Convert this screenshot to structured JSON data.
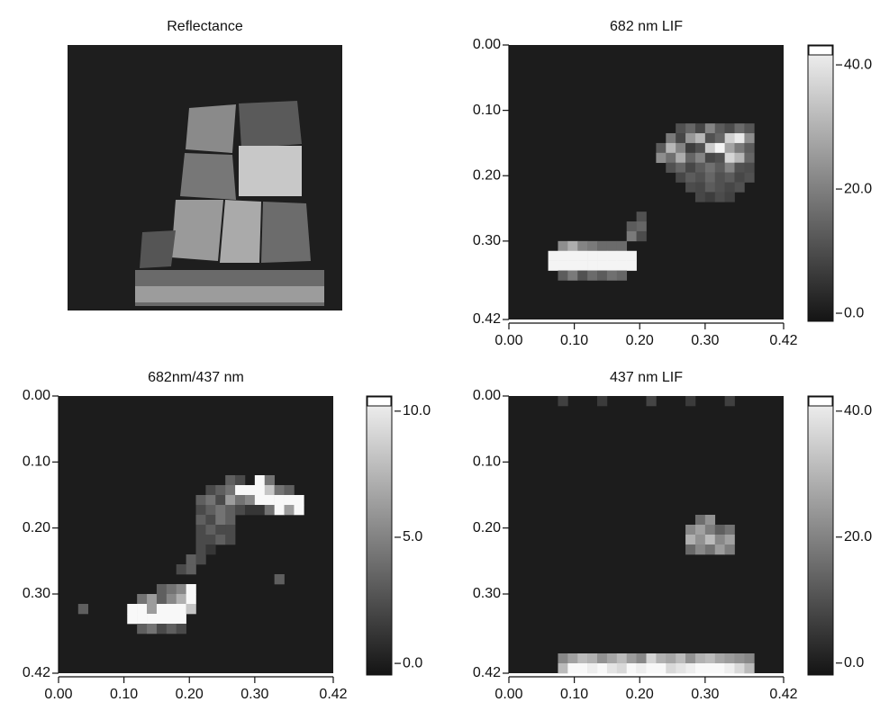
{
  "chart_data": [
    {
      "type": "image",
      "title": "Reflectance"
    },
    {
      "type": "heatmap",
      "title": "682 nm LIF",
      "xlim": [
        0,
        0.42
      ],
      "ylim": [
        0,
        0.42
      ],
      "xticks": [
        {
          "value": 0,
          "label": "0.00"
        },
        {
          "value": 0.1,
          "label": "0.10"
        },
        {
          "value": 0.2,
          "label": "0.20"
        },
        {
          "value": 0.3,
          "label": "0.30"
        },
        0.42
      ],
      "yticks": [
        {
          "value": 0,
          "label": "0.00"
        },
        {
          "value": 0.1,
          "label": "0.10"
        },
        {
          "value": 0.2,
          "label": "0.20"
        },
        {
          "value": 0.3,
          "label": "0.30"
        },
        0.42
      ],
      "clim": [
        -1.3,
        43.2
      ],
      "cticks": [
        {
          "value": 40,
          "label": "40.0"
        },
        {
          "value": 20,
          "label": "20.0"
        },
        {
          "value": 0,
          "label": "0.0"
        }
      ],
      "cells": [
        {
          "y": 0.3,
          "x": [
            0.075,
            0.09,
            0.105,
            0.12,
            0.135,
            0.15,
            0.165
          ],
          "values": [
            22,
            28,
            20,
            18,
            15,
            15,
            15
          ]
        },
        {
          "y": 0.315,
          "x": [
            0.06,
            0.075,
            0.09,
            0.105,
            0.12,
            0.135,
            0.15,
            0.165,
            0.18
          ],
          "values": [
            42,
            42,
            42,
            42,
            42,
            42,
            42,
            42,
            42
          ]
        },
        {
          "y": 0.33,
          "x": [
            0.06,
            0.075,
            0.09,
            0.105,
            0.12,
            0.135,
            0.15,
            0.165,
            0.18
          ],
          "values": [
            42,
            42,
            42,
            42,
            42,
            42,
            42,
            42,
            42
          ]
        },
        {
          "y": 0.345,
          "x": [
            0.075,
            0.09,
            0.105,
            0.12,
            0.135,
            0.15,
            0.165
          ],
          "values": [
            12,
            18,
            10,
            15,
            12,
            16,
            14
          ]
        },
        {
          "y": 0.255,
          "x": [
            0.195
          ],
          "values": [
            10
          ]
        },
        {
          "y": 0.27,
          "x": [
            0.18,
            0.195
          ],
          "values": [
            12,
            14
          ]
        },
        {
          "y": 0.285,
          "x": [
            0.18,
            0.195
          ],
          "values": [
            18,
            9
          ]
        },
        {
          "y": 0.12,
          "x": [
            0.255,
            0.27,
            0.285,
            0.3,
            0.315,
            0.33,
            0.345,
            0.36
          ],
          "values": [
            10,
            14,
            8,
            20,
            12,
            9,
            15,
            11
          ]
        },
        {
          "y": 0.135,
          "x": [
            0.24,
            0.255,
            0.27,
            0.285,
            0.3,
            0.315,
            0.33,
            0.345,
            0.36
          ],
          "values": [
            18,
            8,
            24,
            30,
            10,
            14,
            35,
            40,
            22
          ]
        },
        {
          "y": 0.15,
          "x": [
            0.225,
            0.24,
            0.255,
            0.27,
            0.285,
            0.3,
            0.315,
            0.33,
            0.345,
            0.36
          ],
          "values": [
            12,
            30,
            20,
            6,
            10,
            34,
            42,
            26,
            18,
            12
          ]
        },
        {
          "y": 0.165,
          "x": [
            0.225,
            0.24,
            0.255,
            0.27,
            0.285,
            0.3,
            0.315,
            0.33,
            0.345,
            0.36
          ],
          "values": [
            22,
            16,
            28,
            14,
            20,
            8,
            10,
            36,
            30,
            14
          ]
        },
        {
          "y": 0.18,
          "x": [
            0.24,
            0.255,
            0.27,
            0.285,
            0.3,
            0.315,
            0.33,
            0.345,
            0.36
          ],
          "values": [
            10,
            14,
            8,
            12,
            16,
            12,
            20,
            10,
            9
          ]
        },
        {
          "y": 0.195,
          "x": [
            0.255,
            0.27,
            0.285,
            0.3,
            0.315,
            0.33,
            0.345,
            0.36
          ],
          "values": [
            8,
            12,
            10,
            14,
            10,
            12,
            8,
            10
          ]
        },
        {
          "y": 0.21,
          "x": [
            0.27,
            0.285,
            0.3,
            0.315,
            0.33,
            0.345
          ],
          "values": [
            9,
            8,
            12,
            10,
            8,
            10
          ]
        },
        {
          "y": 0.225,
          "x": [
            0.285,
            0.3,
            0.315,
            0.33
          ],
          "values": [
            8,
            6,
            9,
            7
          ]
        }
      ]
    },
    {
      "type": "heatmap",
      "title": "682nm/437 nm",
      "xlim": [
        0,
        0.42
      ],
      "ylim": [
        0,
        0.42
      ],
      "xticks": [
        {
          "value": 0,
          "label": "0.00"
        },
        {
          "value": 0.1,
          "label": "0.10"
        },
        {
          "value": 0.2,
          "label": "0.20"
        },
        {
          "value": 0.3,
          "label": "0.30"
        },
        0.42
      ],
      "yticks": [
        {
          "value": 0,
          "label": "0.00"
        },
        {
          "value": 0.1,
          "label": "0.10"
        },
        {
          "value": 0.2,
          "label": "0.20"
        },
        {
          "value": 0.3,
          "label": "0.30"
        },
        0.42
      ],
      "clim": [
        -0.46,
        10.6
      ],
      "cticks": [
        {
          "value": 10,
          "label": "10.0"
        },
        {
          "value": 5,
          "label": "5.0"
        },
        {
          "value": 0,
          "label": "0.0"
        }
      ],
      "cells": [
        {
          "y": 0.285,
          "x": [
            0.15,
            0.165,
            0.18,
            0.195
          ],
          "values": [
            3,
            4,
            5,
            10.5
          ]
        },
        {
          "y": 0.3,
          "x": [
            0.12,
            0.135,
            0.15,
            0.165,
            0.18,
            0.195
          ],
          "values": [
            4,
            6,
            3,
            5,
            7,
            10.5
          ]
        },
        {
          "y": 0.315,
          "x": [
            0.105,
            0.12,
            0.135,
            0.15,
            0.165,
            0.18,
            0.195
          ],
          "values": [
            10.5,
            10.5,
            6,
            10.5,
            10.5,
            10.5,
            8
          ]
        },
        {
          "y": 0.33,
          "x": [
            0.105,
            0.12,
            0.135,
            0.15,
            0.165,
            0.18
          ],
          "values": [
            10.5,
            10.5,
            10.5,
            10.5,
            10.5,
            10.5
          ]
        },
        {
          "y": 0.345,
          "x": [
            0.12,
            0.135,
            0.15,
            0.165,
            0.18
          ],
          "values": [
            3,
            4,
            2,
            3,
            2
          ]
        },
        {
          "y": 0.315,
          "x": [
            0.03
          ],
          "values": [
            3
          ]
        },
        {
          "y": 0.255,
          "x": [
            0.18,
            0.195
          ],
          "values": [
            2,
            3
          ]
        },
        {
          "y": 0.24,
          "x": [
            0.195,
            0.21
          ],
          "values": [
            3,
            2
          ]
        },
        {
          "y": 0.27,
          "x": [
            0.33
          ],
          "values": [
            3
          ]
        },
        {
          "y": 0.12,
          "x": [
            0.255,
            0.27,
            0.3,
            0.315
          ],
          "values": [
            3,
            2,
            10.5,
            4
          ]
        },
        {
          "y": 0.135,
          "x": [
            0.225,
            0.24,
            0.255,
            0.27,
            0.285,
            0.3,
            0.315,
            0.33,
            0.345
          ],
          "values": [
            2,
            3,
            4,
            10.5,
            10.5,
            10.5,
            8,
            4,
            3
          ]
        },
        {
          "y": 0.15,
          "x": [
            0.21,
            0.225,
            0.24,
            0.255,
            0.27,
            0.285,
            0.3,
            0.315,
            0.33,
            0.345,
            0.36
          ],
          "values": [
            3,
            4,
            2,
            6,
            4,
            5,
            10.5,
            10.5,
            10.5,
            10.5,
            10.5
          ]
        },
        {
          "y": 0.165,
          "x": [
            0.21,
            0.225,
            0.24,
            0.255,
            0.27,
            0.285,
            0.3,
            0.315,
            0.33,
            0.345,
            0.36
          ],
          "values": [
            2,
            3,
            4,
            3,
            2,
            1,
            1,
            4,
            10.5,
            6,
            10.5
          ]
        },
        {
          "y": 0.18,
          "x": [
            0.21,
            0.225,
            0.24,
            0.255
          ],
          "values": [
            3,
            2,
            4,
            3
          ]
        },
        {
          "y": 0.195,
          "x": [
            0.21,
            0.225,
            0.24,
            0.255
          ],
          "values": [
            2,
            3,
            2,
            2
          ]
        },
        {
          "y": 0.21,
          "x": [
            0.21,
            0.225,
            0.24,
            0.255
          ],
          "values": [
            2,
            2,
            3,
            2
          ]
        },
        {
          "y": 0.225,
          "x": [
            0.21,
            0.225
          ],
          "values": [
            2,
            1
          ]
        }
      ]
    },
    {
      "type": "heatmap",
      "title": "437 nm LIF",
      "xlim": [
        0,
        0.42
      ],
      "ylim": [
        0,
        0.42
      ],
      "xticks": [
        {
          "value": 0,
          "label": "0.00"
        },
        {
          "value": 0.1,
          "label": "0.10"
        },
        {
          "value": 0.2,
          "label": "0.20"
        },
        {
          "value": 0.3,
          "label": "0.30"
        },
        0.42
      ],
      "yticks": [
        {
          "value": 0,
          "label": "0.00"
        },
        {
          "value": 0.1,
          "label": "0.10"
        },
        {
          "value": 0.2,
          "label": "0.20"
        },
        {
          "value": 0.3,
          "label": "0.30"
        },
        0.42
      ],
      "clim": [
        -1.9,
        42.4
      ],
      "cticks": [
        {
          "value": 40,
          "label": "40.0"
        },
        {
          "value": 20,
          "label": "20.0"
        },
        {
          "value": 0,
          "label": "0.0"
        }
      ],
      "cells": [
        {
          "y": 0,
          "x": [
            0.075,
            0.135,
            0.21,
            0.27,
            0.33
          ],
          "values": [
            6,
            5,
            7,
            5,
            6
          ]
        },
        {
          "y": 0.18,
          "x": [
            0.285,
            0.3
          ],
          "values": [
            15,
            22
          ]
        },
        {
          "y": 0.195,
          "x": [
            0.27,
            0.285,
            0.3,
            0.315,
            0.33
          ],
          "values": [
            20,
            25,
            18,
            12,
            16
          ]
        },
        {
          "y": 0.21,
          "x": [
            0.27,
            0.285,
            0.3,
            0.315,
            0.33
          ],
          "values": [
            28,
            22,
            30,
            20,
            25
          ]
        },
        {
          "y": 0.225,
          "x": [
            0.27,
            0.285,
            0.3,
            0.315,
            0.33
          ],
          "values": [
            14,
            20,
            16,
            24,
            18
          ]
        },
        {
          "y": 0.39,
          "x": [
            0.075,
            0.09,
            0.105,
            0.12,
            0.135,
            0.15,
            0.165,
            0.18,
            0.195,
            0.21,
            0.225,
            0.24,
            0.255,
            0.27,
            0.285,
            0.3,
            0.315,
            0.33,
            0.345,
            0.36
          ],
          "values": [
            20,
            25,
            30,
            28,
            22,
            26,
            30,
            24,
            20,
            35,
            28,
            26,
            30,
            22,
            28,
            30,
            26,
            24,
            22,
            20
          ]
        },
        {
          "y": 0.405,
          "x": [
            0.075,
            0.09,
            0.105,
            0.12,
            0.135,
            0.15,
            0.165,
            0.18,
            0.195,
            0.21,
            0.225,
            0.24,
            0.255,
            0.27,
            0.285,
            0.3,
            0.315,
            0.33,
            0.345,
            0.36
          ],
          "values": [
            30,
            42,
            42,
            40,
            42,
            38,
            36,
            42,
            40,
            42,
            42,
            36,
            38,
            40,
            42,
            42,
            42,
            40,
            36,
            30
          ]
        }
      ]
    }
  ]
}
